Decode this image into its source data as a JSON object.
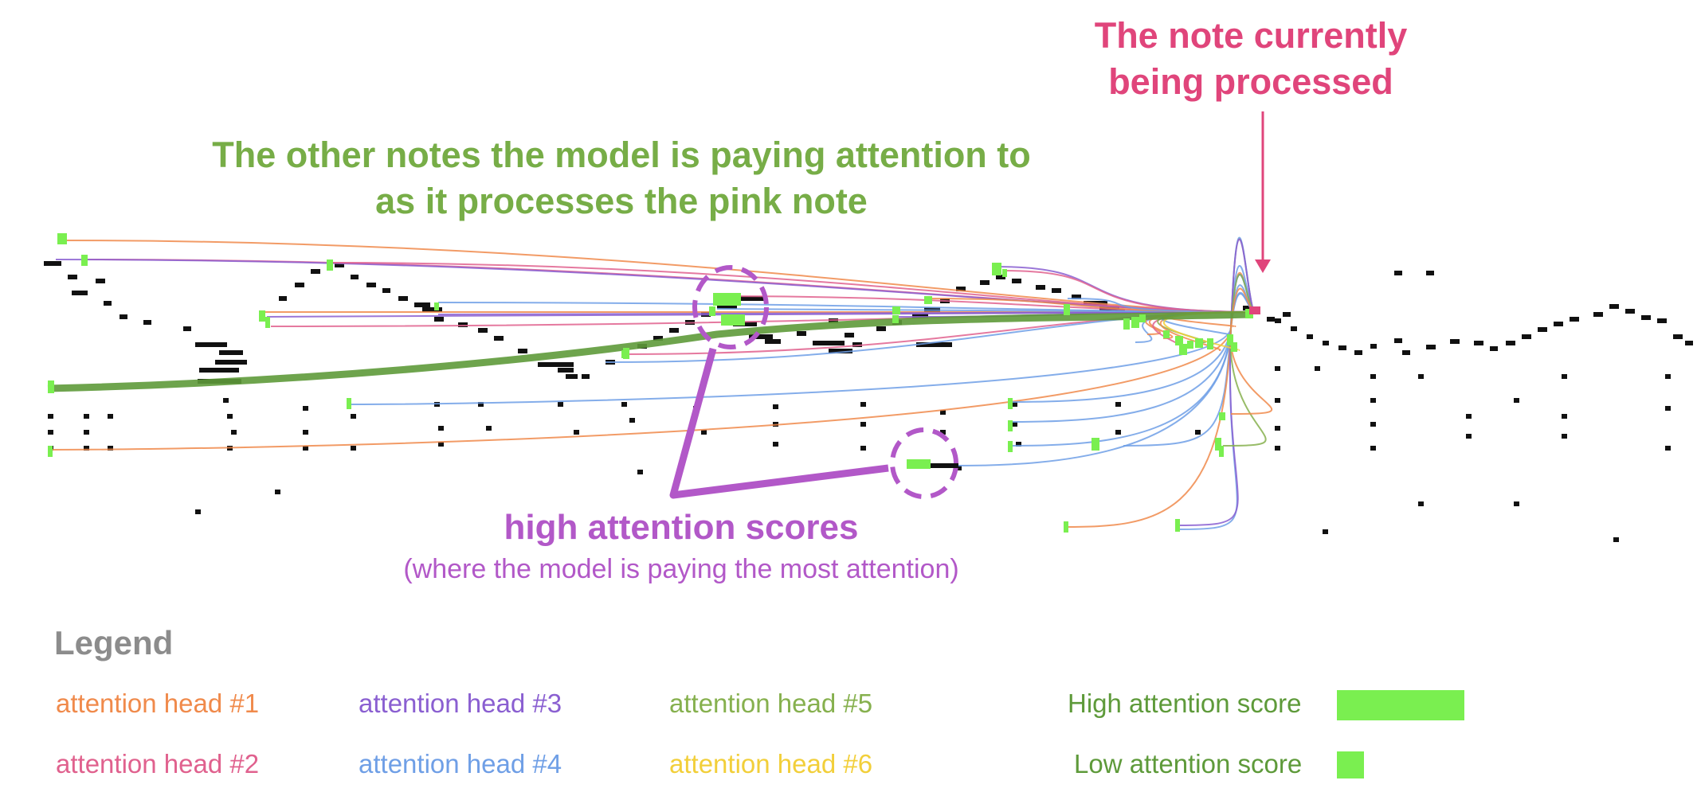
{
  "annotations": {
    "current_note_label_line1": "The note currently",
    "current_note_label_line2": "being processed",
    "attended_notes_line1": "The other notes the model is paying attention to",
    "attended_notes_line2": "as it processes the pink note",
    "high_scores_title": "high attention scores",
    "high_scores_subtitle": "(where the model is paying the most attention)"
  },
  "legend": {
    "title": "Legend",
    "heads": [
      {
        "label": "attention head #1",
        "color": "#f08a4b"
      },
      {
        "label": "attention head #2",
        "color": "#e0618e"
      },
      {
        "label": "attention head #3",
        "color": "#8a5fd1"
      },
      {
        "label": "attention head #4",
        "color": "#6f9fe6"
      },
      {
        "label": "attention head #5",
        "color": "#86b04e"
      },
      {
        "label": "attention head #6",
        "color": "#f2cf3a"
      }
    ],
    "high_score_label": "High attention score",
    "low_score_label": "Low attention score",
    "score_bar_color": "#7aef50"
  },
  "colors": {
    "note": "#111111",
    "attended_note": "#7aef50",
    "current_note": "#e0457b",
    "highlight": "#b258c8",
    "strong_link": "#5e9a3a"
  }
}
